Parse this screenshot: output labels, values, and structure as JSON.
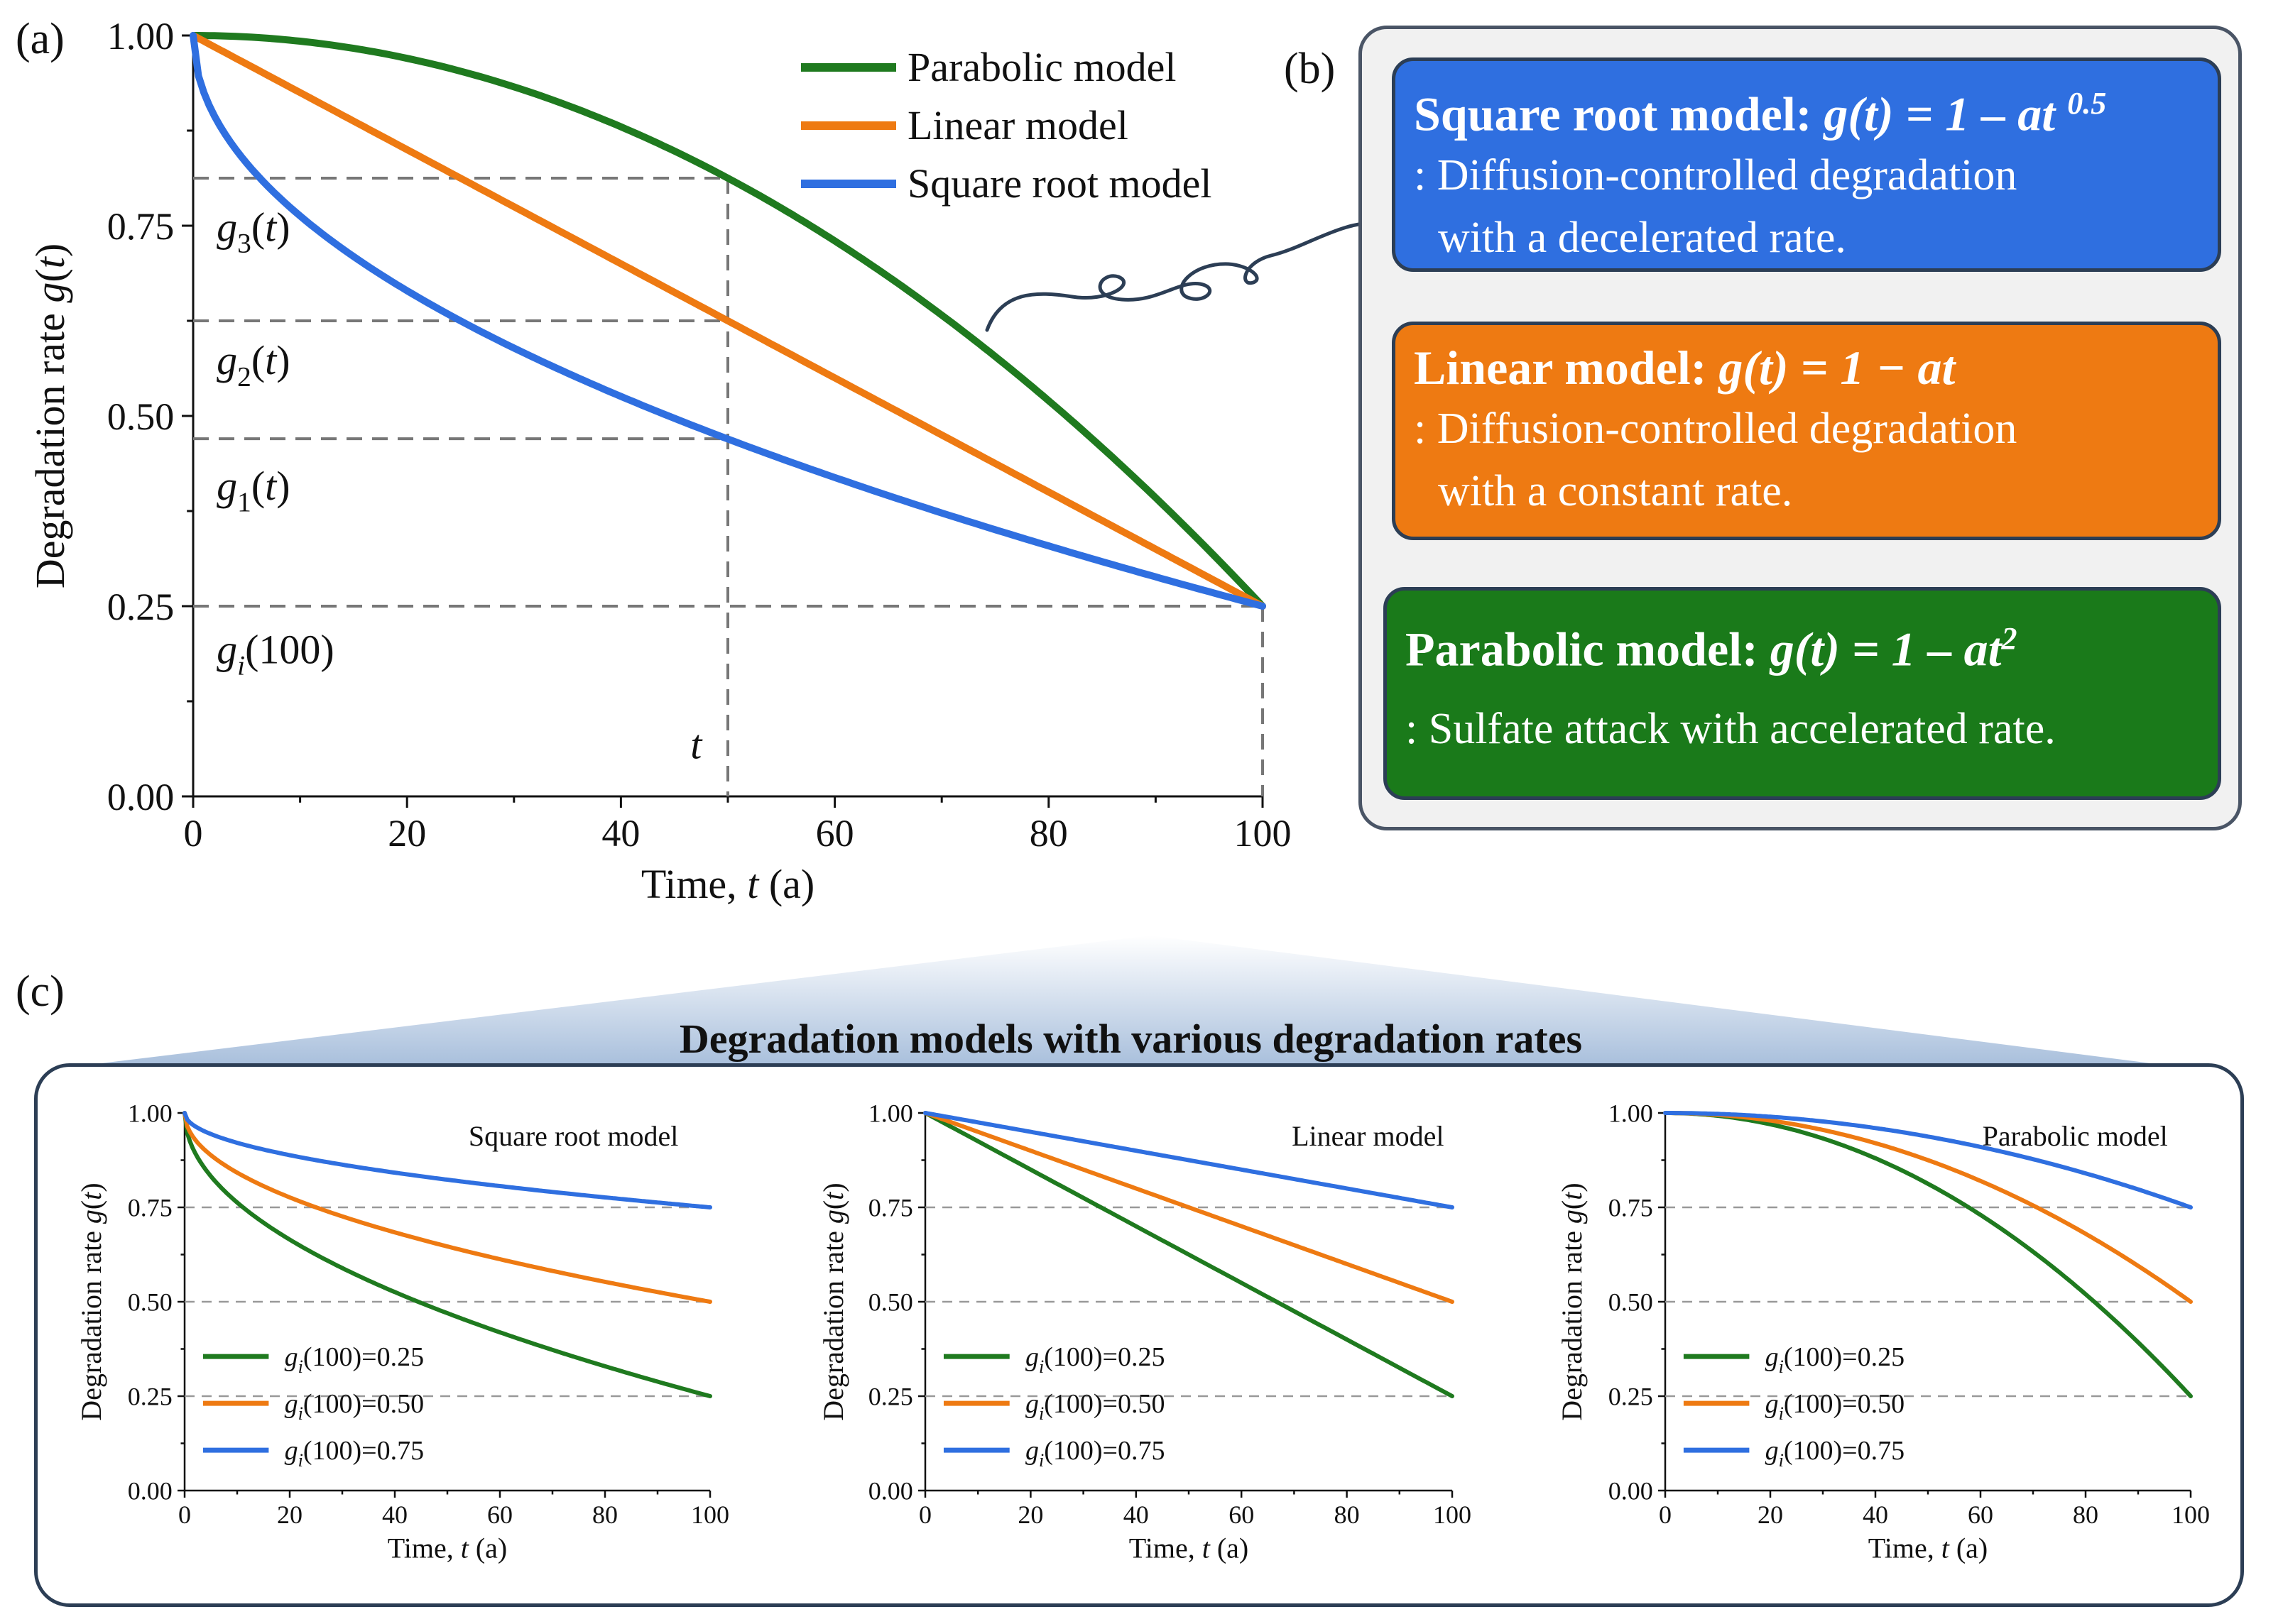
{
  "panel_labels": {
    "a": "(a)",
    "b": "(b)",
    "c": "(c)"
  },
  "chart_data": [
    {
      "type": "line",
      "id": "a",
      "xlabel": "Time, t (a)",
      "ylabel": "Degradation rate g(t)",
      "xlim": [
        0,
        100
      ],
      "ylim": [
        0,
        1
      ],
      "xticks": [
        "0",
        "20",
        "40",
        "60",
        "80",
        "100"
      ],
      "yticks": [
        "0.00",
        "0.25",
        "0.50",
        "0.75",
        "1.00"
      ],
      "legend_position": "top-right",
      "series": [
        {
          "name": "Parabolic model",
          "color": "#1f7a1f",
          "model": "parabolic",
          "g100": 0.25
        },
        {
          "name": "Linear model",
          "color": "#ee7a12",
          "model": "linear",
          "g100": 0.25
        },
        {
          "name": "Square root model",
          "color": "#2f6fe0",
          "model": "sqrt",
          "g100": 0.25
        }
      ],
      "reference_lines": {
        "t": 50,
        "g1": 0.47,
        "g2": 0.625,
        "g3": 0.8125,
        "gi": 0.25
      },
      "annotations": {
        "g3": "g3(t)",
        "g2": "g2(t)",
        "g1": "g1(t)",
        "gi": "gi(100)",
        "t": "t"
      }
    },
    {
      "type": "line",
      "id": "c1",
      "title": "Square root model",
      "model": "sqrt",
      "xlabel": "Time, t (a)",
      "ylabel": "Degradation rate g(t)",
      "xlim": [
        0,
        100
      ],
      "ylim": [
        0,
        1
      ],
      "xticks": [
        "0",
        "20",
        "40",
        "60",
        "80",
        "100"
      ],
      "yticks": [
        "0.00",
        "0.25",
        "0.50",
        "0.75",
        "1.00"
      ],
      "series": [
        {
          "name": "gi(100)=0.25",
          "g100": 0.25,
          "color": "#1f7a1f"
        },
        {
          "name": "gi(100)=0.50",
          "g100": 0.5,
          "color": "#ee7a12"
        },
        {
          "name": "gi(100)=0.75",
          "g100": 0.75,
          "color": "#2f6fe0"
        }
      ]
    },
    {
      "type": "line",
      "id": "c2",
      "title": "Linear model",
      "model": "linear",
      "xlabel": "Time, t (a)",
      "ylabel": "Degradation rate g(t)",
      "xlim": [
        0,
        100
      ],
      "ylim": [
        0,
        1
      ],
      "xticks": [
        "0",
        "20",
        "40",
        "60",
        "80",
        "100"
      ],
      "yticks": [
        "0.00",
        "0.25",
        "0.50",
        "0.75",
        "1.00"
      ],
      "series": [
        {
          "name": "gi(100)=0.25",
          "g100": 0.25,
          "color": "#1f7a1f"
        },
        {
          "name": "gi(100)=0.50",
          "g100": 0.5,
          "color": "#ee7a12"
        },
        {
          "name": "gi(100)=0.75",
          "g100": 0.75,
          "color": "#2f6fe0"
        }
      ]
    },
    {
      "type": "line",
      "id": "c3",
      "title": "Parabolic model",
      "model": "parabolic",
      "xlabel": "Time, t (a)",
      "ylabel": "Degradation rate g(t)",
      "xlim": [
        0,
        100
      ],
      "ylim": [
        0,
        1
      ],
      "xticks": [
        "0",
        "20",
        "40",
        "60",
        "80",
        "100"
      ],
      "yticks": [
        "0.00",
        "0.25",
        "0.50",
        "0.75",
        "1.00"
      ],
      "series": [
        {
          "name": "gi(100)=0.25",
          "g100": 0.25,
          "color": "#1f7a1f"
        },
        {
          "name": "gi(100)=0.50",
          "g100": 0.5,
          "color": "#ee7a12"
        },
        {
          "name": "gi(100)=0.75",
          "g100": 0.75,
          "color": "#2f6fe0"
        }
      ]
    }
  ],
  "cards": [
    {
      "id": "sqrt",
      "title": "Square root model: ",
      "formula": "g(t) = 1 – at ",
      "sup": "0.5",
      "line1": ": Diffusion-controlled degradation",
      "line2": "with a decelerated rate.",
      "color": "#2f6fe0"
    },
    {
      "id": "linear",
      "title": "Linear model: ",
      "formula": "g(t) = 1 − at",
      "sup": "",
      "line1": ": Diffusion-controlled degradation",
      "line2": "with a constant rate.",
      "color": "#ee7a12"
    },
    {
      "id": "parabolic",
      "title": "Parabolic model: ",
      "formula": "g(t) = 1 – at",
      "sup": "2",
      "line1": ": Sulfate attack with accelerated rate.",
      "line2": "",
      "color": "#1a7a1a"
    }
  ],
  "panel_c_title": "Degradation models with various degradation rates"
}
